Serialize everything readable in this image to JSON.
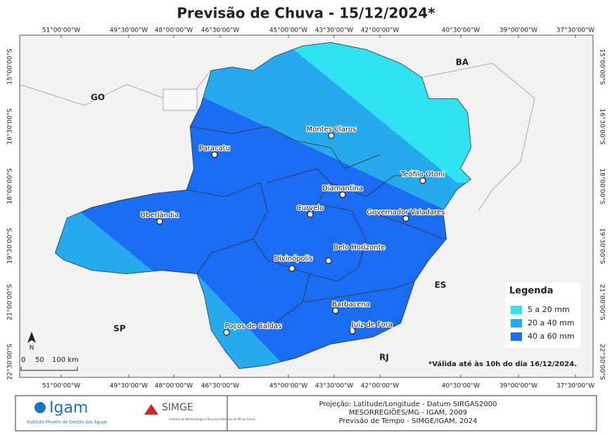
{
  "title": "Previsão de Chuva - 15/12/2024*",
  "longitude_labels": [
    "51°00'00\"W",
    "49°30'00\"W",
    "48°00'00\"W",
    "46°30'00\"W",
    "45°00'00\"W",
    "43°30'00\"W",
    "42°00'00\"W",
    "40°30'00\"W",
    "39°00'00\"W",
    "37°30'00\"W"
  ],
  "latitude_labels": [
    "15°00'00\"S",
    "16°30'00\"S",
    "18°00'00\"S",
    "19°30'00\"S",
    "21°00'00\"S",
    "22°30'00\"S"
  ],
  "states": [
    "GO",
    "BA",
    "SP",
    "ES",
    "RJ"
  ],
  "cities": [
    "Montes Claros",
    "Paracatu",
    "Teófilo Otoni",
    "Diamantina",
    "Curvelo",
    "Governador Valadares",
    "Uberlândia",
    "Belo Horizonte",
    "Divinópolis",
    "Barbacena",
    "Juiz de Fora",
    "Poços de Caldas"
  ],
  "legend": {
    "title": "Legenda",
    "items": [
      {
        "label": "5 a 20 mm",
        "color": "#2fe3f2"
      },
      {
        "label": "20 a 40 mm",
        "color": "#27a9ee"
      },
      {
        "label": "40 a 60 mm",
        "color": "#1a6cf2"
      }
    ]
  },
  "note": "*Válida até às 10h do dia 16/12/2024.",
  "scale_bar": [
    "0",
    "50",
    "100 km"
  ],
  "north": "N",
  "footer": {
    "igam": "Igam",
    "igam_subtitle": "Instituto Mineiro de Gestão das Águas",
    "simge": "SIMGE",
    "simge_subtitle": "Sistema de Meteorologia e Recursos Hídricos de Minas Gerais",
    "lines": [
      "Projeção: Latitude/Longitude - Datum SIRGAS2000",
      "MESORREGIÕES/MG - IGAM, 2009",
      "Previsão de Tempo - SIMGE/IGAM, 2024"
    ]
  }
}
